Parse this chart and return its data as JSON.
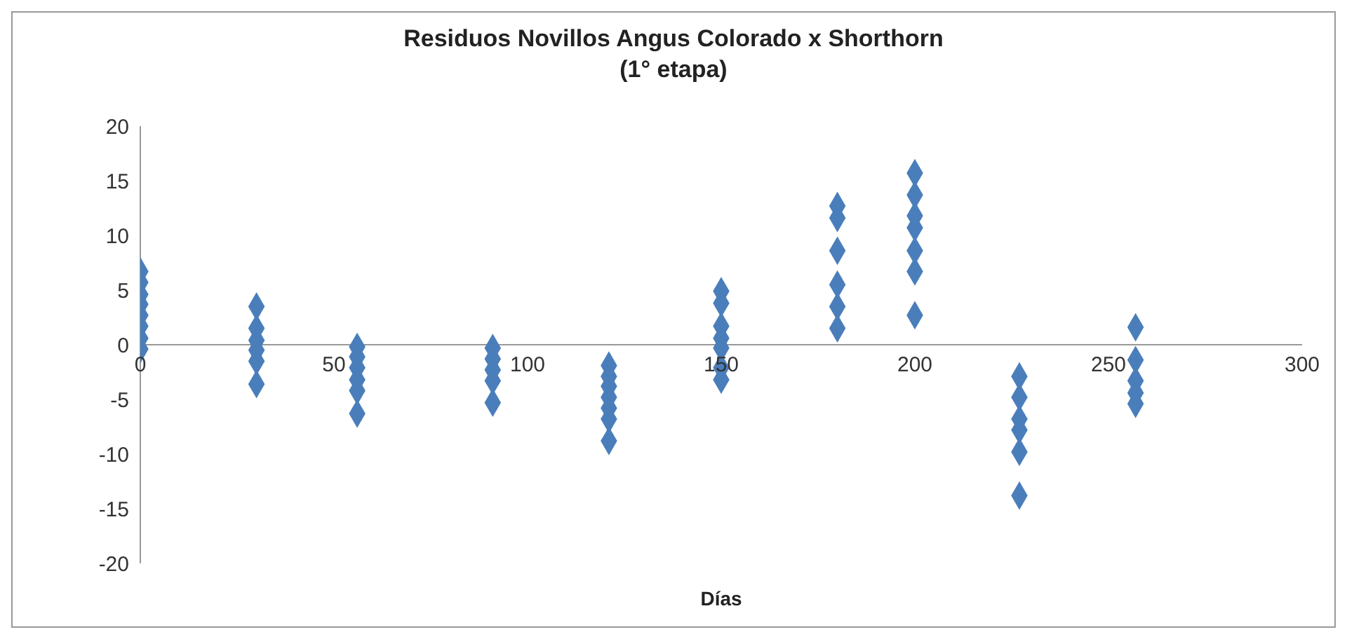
{
  "chart_data": {
    "type": "scatter",
    "title": "Residuos Novillos Angus Colorado x  Shorthorn\n(1° etapa)",
    "xlabel": "Días",
    "x": [
      0,
      0,
      0,
      0,
      0,
      0,
      0,
      0,
      30,
      30,
      30,
      30,
      30,
      30,
      56,
      56,
      56,
      56,
      56,
      56,
      91,
      91,
      91,
      91,
      91,
      121,
      121,
      121,
      121,
      121,
      121,
      121,
      150,
      150,
      150,
      150,
      150,
      150,
      150,
      180,
      180,
      180,
      180,
      180,
      180,
      200,
      200,
      200,
      200,
      200,
      200,
      200,
      227,
      227,
      227,
      227,
      227,
      227,
      257,
      257,
      257,
      257,
      257
    ],
    "series": [
      {
        "color": "#4a7ebb",
        "values": [
          6.7,
          5.7,
          4.6,
          3.7,
          2.7,
          1.7,
          0.6,
          -0.4,
          3.5,
          1.5,
          0.4,
          -0.5,
          -1.5,
          -3.6,
          -0.2,
          -1.1,
          -2.1,
          -3.2,
          -4.2,
          -6.3,
          -0.3,
          -1.3,
          -2.3,
          -3.3,
          -5.3,
          -1.9,
          -2.9,
          -3.8,
          -4.8,
          -5.8,
          -6.8,
          -8.8,
          4.9,
          3.8,
          1.7,
          0.6,
          -0.3,
          -2.1,
          -3.2,
          12.7,
          11.6,
          8.6,
          5.5,
          3.5,
          1.5,
          15.7,
          13.7,
          11.8,
          10.7,
          8.6,
          6.7,
          2.7,
          -2.9,
          -4.8,
          -6.8,
          -7.8,
          -9.8,
          -13.8,
          1.6,
          -1.4,
          -3.3,
          -4.4,
          -5.4
        ]
      }
    ],
    "xlim": [
      0,
      300
    ],
    "xticks": [
      0,
      50,
      100,
      150,
      200,
      250,
      300
    ],
    "ylim": [
      -20,
      20
    ],
    "yticks": [
      -20,
      -15,
      -10,
      -5,
      0,
      5,
      10,
      15,
      20
    ],
    "marker": "diamond",
    "grid": false,
    "legend": false
  }
}
